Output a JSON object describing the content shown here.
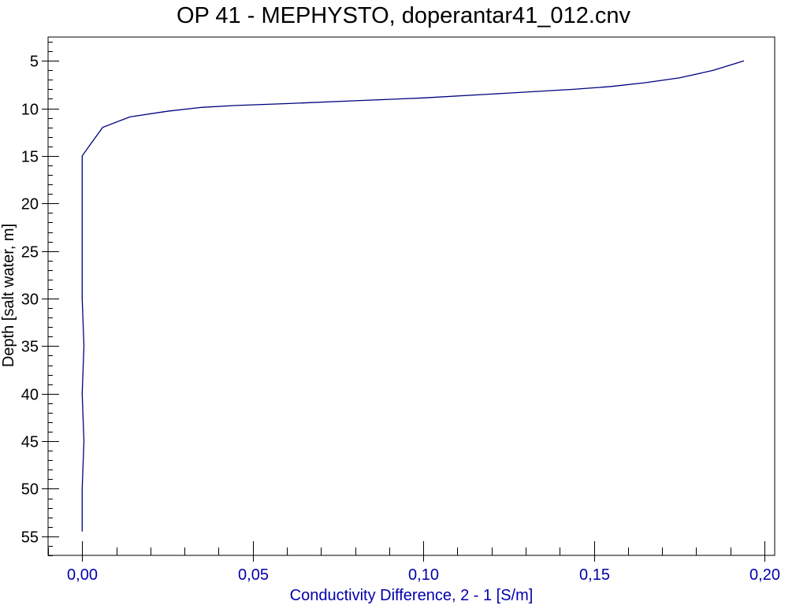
{
  "chart_data": {
    "type": "line",
    "title": "OP 41 - MEPHYSTO, doperantar41_012.cnv",
    "xlabel": "Conductivity Difference, 2 - 1 [S/m]",
    "ylabel": "Depth [salt water, m]",
    "xlim": [
      -0.01,
      0.203
    ],
    "ylim": [
      2.5,
      57.0
    ],
    "y_inverted": true,
    "x_ticks": [
      {
        "value": 0.0,
        "label": "0,00"
      },
      {
        "value": 0.05,
        "label": "0,05"
      },
      {
        "value": 0.1,
        "label": "0,10"
      },
      {
        "value": 0.15,
        "label": "0,15"
      },
      {
        "value": 0.2,
        "label": "0,20"
      }
    ],
    "x_minor_step": 0.01,
    "y_ticks": [
      {
        "value": 5,
        "label": "5"
      },
      {
        "value": 10,
        "label": "10"
      },
      {
        "value": 15,
        "label": "15"
      },
      {
        "value": 20,
        "label": "20"
      },
      {
        "value": 25,
        "label": "25"
      },
      {
        "value": 30,
        "label": "30"
      },
      {
        "value": 35,
        "label": "35"
      },
      {
        "value": 40,
        "label": "40"
      },
      {
        "value": 45,
        "label": "45"
      },
      {
        "value": 50,
        "label": "50"
      },
      {
        "value": 55,
        "label": "55"
      }
    ],
    "y_minor_step": 1,
    "grid": false,
    "colors": {
      "series": "#000080",
      "x_axis_text": "#0000aa",
      "y_axis_text": "#000000",
      "frame": "#000000"
    },
    "series": [
      {
        "x": [
          0.194,
          0.185,
          0.175,
          0.165,
          0.155,
          0.144,
          0.12,
          0.1,
          0.08,
          0.06,
          0.045,
          0.035,
          0.025,
          0.014,
          0.006,
          0.002,
          0.0,
          0.0,
          0.0,
          0.0005,
          0.0,
          0.0005,
          0.0,
          0.0,
          0.0
        ],
        "y": [
          5.0,
          6.0,
          6.8,
          7.3,
          7.7,
          8.0,
          8.5,
          8.9,
          9.2,
          9.5,
          9.7,
          9.9,
          10.3,
          10.9,
          12.0,
          14.0,
          15.0,
          20.0,
          30.0,
          35.0,
          40.0,
          45.0,
          50.0,
          53.0,
          54.5
        ]
      }
    ]
  }
}
